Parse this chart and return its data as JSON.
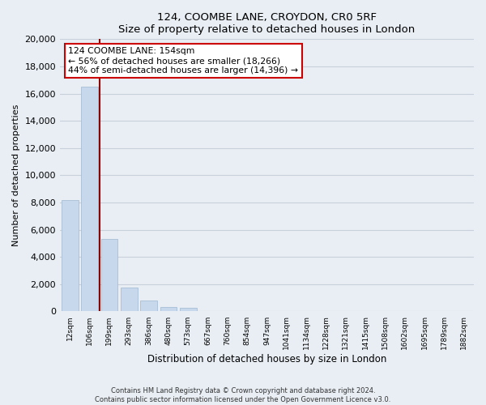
{
  "title": "124, COOMBE LANE, CROYDON, CR0 5RF",
  "subtitle": "Size of property relative to detached houses in London",
  "xlabel": "Distribution of detached houses by size in London",
  "ylabel": "Number of detached properties",
  "bar_labels": [
    "12sqm",
    "106sqm",
    "199sqm",
    "293sqm",
    "386sqm",
    "480sqm",
    "573sqm",
    "667sqm",
    "760sqm",
    "854sqm",
    "947sqm",
    "1041sqm",
    "1134sqm",
    "1228sqm",
    "1321sqm",
    "1415sqm",
    "1508sqm",
    "1602sqm",
    "1695sqm",
    "1789sqm",
    "1882sqm"
  ],
  "bar_values": [
    8200,
    16500,
    5300,
    1750,
    780,
    300,
    270,
    0,
    0,
    0,
    0,
    0,
    0,
    0,
    0,
    0,
    0,
    0,
    0,
    0,
    0
  ],
  "bar_color": "#c8d8ec",
  "bar_edge_color": "#a0b8d0",
  "marker_color": "#8b0000",
  "annotation_title": "124 COOMBE LANE: 154sqm",
  "annotation_line1": "← 56% of detached houses are smaller (18,266)",
  "annotation_line2": "44% of semi-detached houses are larger (14,396) →",
  "annotation_box_color": "#ffffff",
  "annotation_box_edge": "#cc0000",
  "ylim": [
    0,
    20000
  ],
  "yticks": [
    0,
    2000,
    4000,
    6000,
    8000,
    10000,
    12000,
    14000,
    16000,
    18000,
    20000
  ],
  "grid_color": "#c8d0dc",
  "bg_color": "#e8eef4",
  "footer_line1": "Contains HM Land Registry data © Crown copyright and database right 2024.",
  "footer_line2": "Contains public sector information licensed under the Open Government Licence v3.0."
}
